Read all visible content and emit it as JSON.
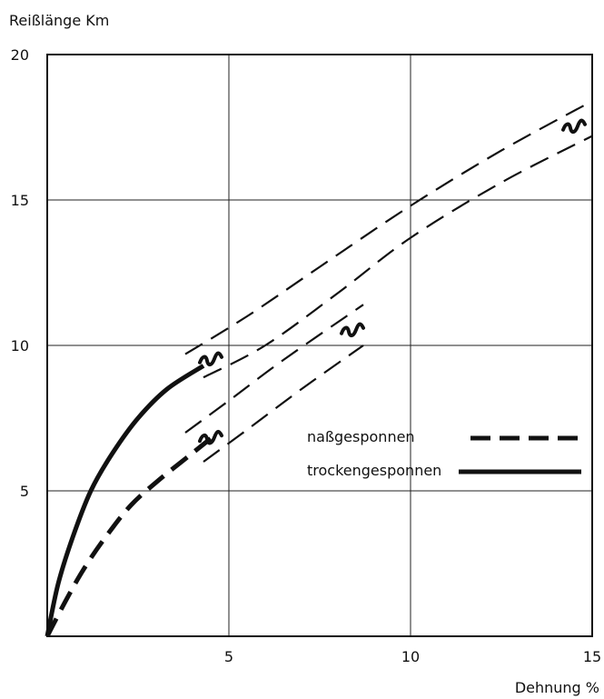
{
  "chart_data": {
    "type": "line",
    "ylabel": "Reißlänge Km",
    "xlabel": "Dehnung %",
    "xlim": [
      0,
      15
    ],
    "ylim": [
      0,
      20
    ],
    "x_ticks": [
      5,
      10,
      15
    ],
    "y_ticks": [
      5,
      10,
      15,
      20
    ],
    "x_tick_labels": [
      "5",
      "10",
      "15"
    ],
    "y_tick_labels": [
      "5",
      "10",
      "15",
      "20"
    ],
    "grid": true,
    "legend_position": "right",
    "series": [
      {
        "name": "trockengesponnen",
        "style": "solid",
        "color": "#111111",
        "x": [
          0,
          0.3,
          0.7,
          1.2,
          1.8,
          2.5,
          3.3,
          4.3
        ],
        "y": [
          0,
          1.8,
          3.4,
          5.0,
          6.3,
          7.5,
          8.5,
          9.3
        ]
      },
      {
        "name": "naßgesponnen",
        "style": "dashed",
        "color": "#111111",
        "x": [
          0,
          0.5,
          1.0,
          1.6,
          2.3,
          3.1,
          3.9,
          4.5
        ],
        "y": [
          0,
          1.2,
          2.3,
          3.4,
          4.5,
          5.4,
          6.2,
          6.8
        ]
      }
    ],
    "bands": [
      {
        "name": "",
        "upper": {
          "x": [
            3.8,
            5.5,
            7.5,
            10,
            12.5,
            15
          ],
          "y": [
            9.7,
            11.0,
            12.7,
            14.8,
            16.7,
            18.4
          ]
        },
        "lower": {
          "x": [
            4.3,
            6.0,
            8.0,
            10,
            12.5,
            15
          ],
          "y": [
            8.9,
            10.0,
            11.8,
            13.7,
            15.6,
            17.2
          ]
        }
      },
      {
        "name": "",
        "upper": {
          "x": [
            3.8,
            5.0,
            6.5,
            8.7
          ],
          "y": [
            7.0,
            8.1,
            9.5,
            11.4
          ]
        },
        "lower": {
          "x": [
            4.3,
            5.5,
            7.0,
            8.7
          ],
          "y": [
            6.0,
            7.1,
            8.5,
            10.0
          ]
        }
      }
    ],
    "band_marks": [
      {
        "x": 4.5,
        "y": 9.6
      },
      {
        "x": 4.5,
        "y": 6.9
      },
      {
        "x": 8.4,
        "y": 10.6
      },
      {
        "x": 14.5,
        "y": 17.6
      }
    ]
  }
}
